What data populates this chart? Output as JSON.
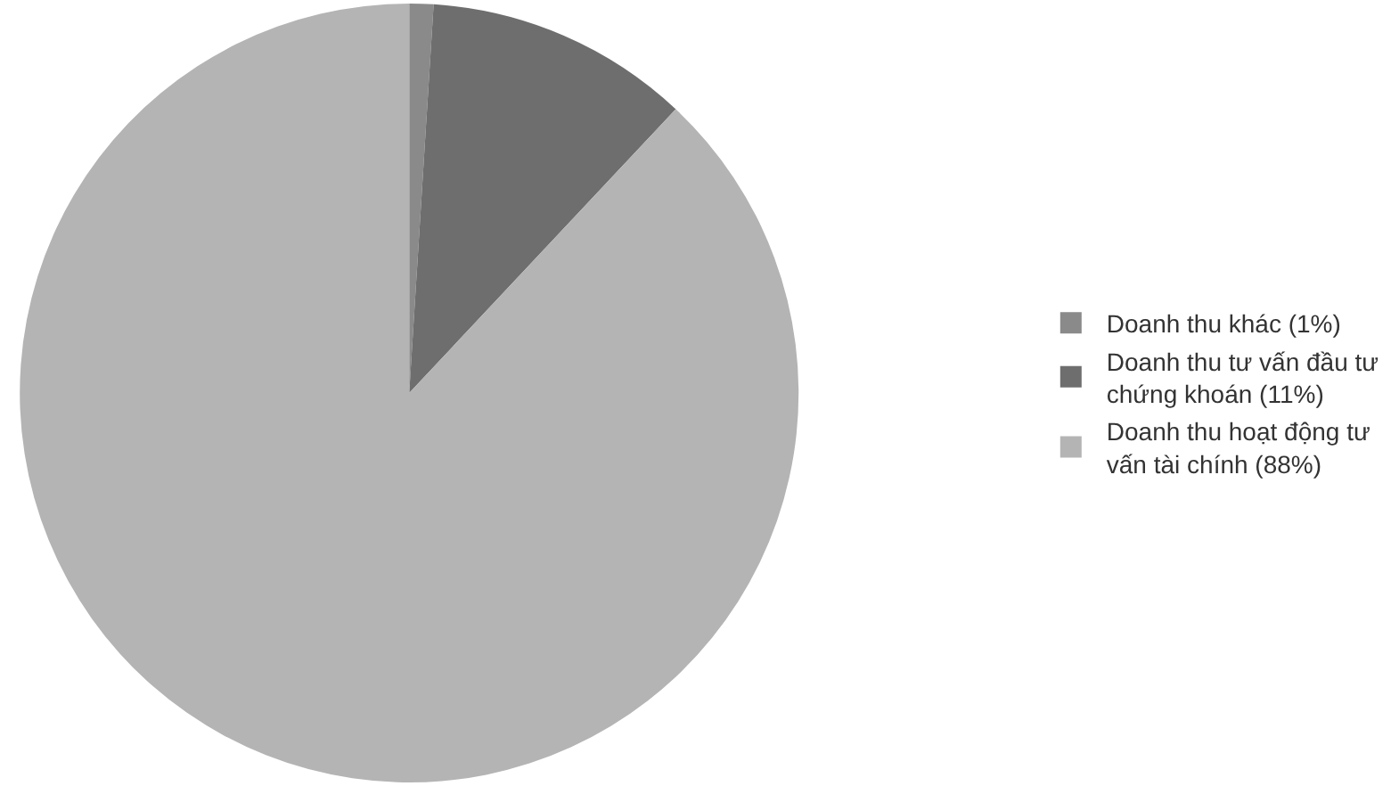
{
  "chart_data": {
    "type": "pie",
    "categories": [
      "Doanh thu khác (1%)",
      "Doanh thu tư vấn đầu tư chứng khoán (11%)",
      "Doanh thu hoạt động tư vấn tài chính (88%)"
    ],
    "values": [
      1,
      11,
      88
    ],
    "colors": [
      "#8a8a8a",
      "#6e6e6e",
      "#b4b4b4"
    ],
    "legend": "right"
  }
}
